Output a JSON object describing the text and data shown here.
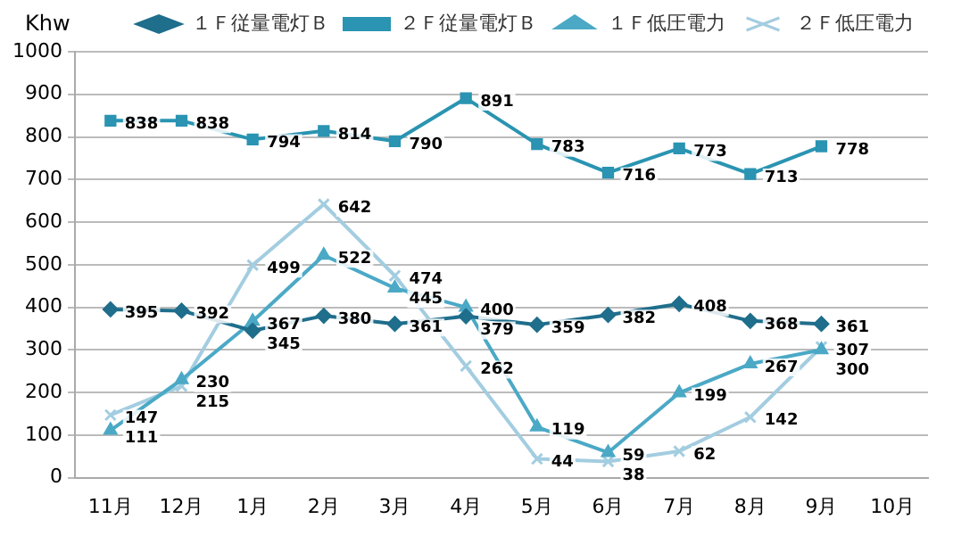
{
  "chart_data": {
    "type": "line",
    "ylabel": "Khw",
    "categories": [
      "11月",
      "12月",
      "1月",
      "2月",
      "3月",
      "4月",
      "5月",
      "6月",
      "7月",
      "8月",
      "9月",
      "10月"
    ],
    "series": [
      {
        "name": "１Ｆ従量電灯Ｂ",
        "color": "#1f6e8c",
        "marker": "diamond",
        "values": [
          395,
          392,
          345,
          380,
          361,
          379,
          359,
          382,
          408,
          368,
          361,
          null
        ]
      },
      {
        "name": "２Ｆ従量電灯Ｂ",
        "color": "#2a94b2",
        "marker": "square",
        "values": [
          838,
          838,
          794,
          814,
          790,
          891,
          783,
          716,
          773,
          713,
          778,
          null
        ]
      },
      {
        "name": "１Ｆ低圧電力",
        "color": "#4ba9c6",
        "marker": "triangle",
        "values": [
          111,
          230,
          367,
          522,
          445,
          400,
          119,
          59,
          199,
          267,
          300,
          null
        ]
      },
      {
        "name": "２Ｆ低圧電力",
        "color": "#a3cde0",
        "marker": "cross",
        "values": [
          147,
          215,
          499,
          642,
          474,
          262,
          44,
          38,
          62,
          142,
          307,
          null
        ]
      }
    ],
    "ylim": [
      0,
      1000
    ],
    "yticks": [
      0,
      100,
      200,
      300,
      400,
      500,
      600,
      700,
      800,
      900,
      1000
    ],
    "grid": "y",
    "legend": "top right",
    "data_labels": true,
    "line_style": "solid"
  }
}
